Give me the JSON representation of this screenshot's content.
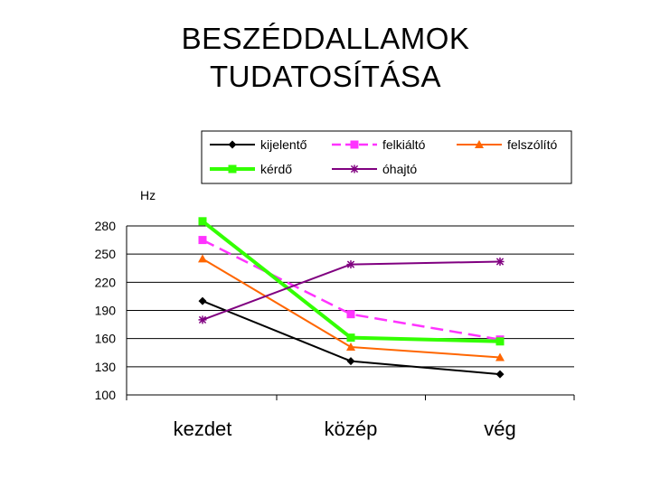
{
  "title_lines": [
    "BESZÉDDALLAMOK",
    "TUDATOSÍTÁSA"
  ],
  "chart_data": {
    "type": "line",
    "title": "",
    "ylabel": "Hz",
    "xlabel": "",
    "categories": [
      "kezdet",
      "közép",
      "vég"
    ],
    "ylim": [
      100,
      280
    ],
    "yticks": [
      100,
      130,
      160,
      190,
      220,
      250,
      280
    ],
    "grid": true,
    "legend_position": "top",
    "series": [
      {
        "name": "kijelentő",
        "values": [
          200,
          136,
          122
        ],
        "color": "#000000",
        "marker": "diamond",
        "dash": "solid",
        "width": 2
      },
      {
        "name": "felkiáltó",
        "values": [
          265,
          186,
          159
        ],
        "color": "#ff33ff",
        "marker": "square",
        "dash": "dashed",
        "width": 2.5
      },
      {
        "name": "felszólító",
        "values": [
          245,
          151,
          140
        ],
        "color": "#ff6600",
        "marker": "triangle",
        "dash": "solid",
        "width": 2
      },
      {
        "name": "kérdő",
        "values": [
          285,
          161,
          157
        ],
        "color": "#33ff00",
        "marker": "square",
        "dash": "solid",
        "width": 4
      },
      {
        "name": "óhajtó",
        "values": [
          180,
          239,
          242
        ],
        "color": "#800080",
        "marker": "star",
        "dash": "solid",
        "width": 2
      }
    ]
  }
}
